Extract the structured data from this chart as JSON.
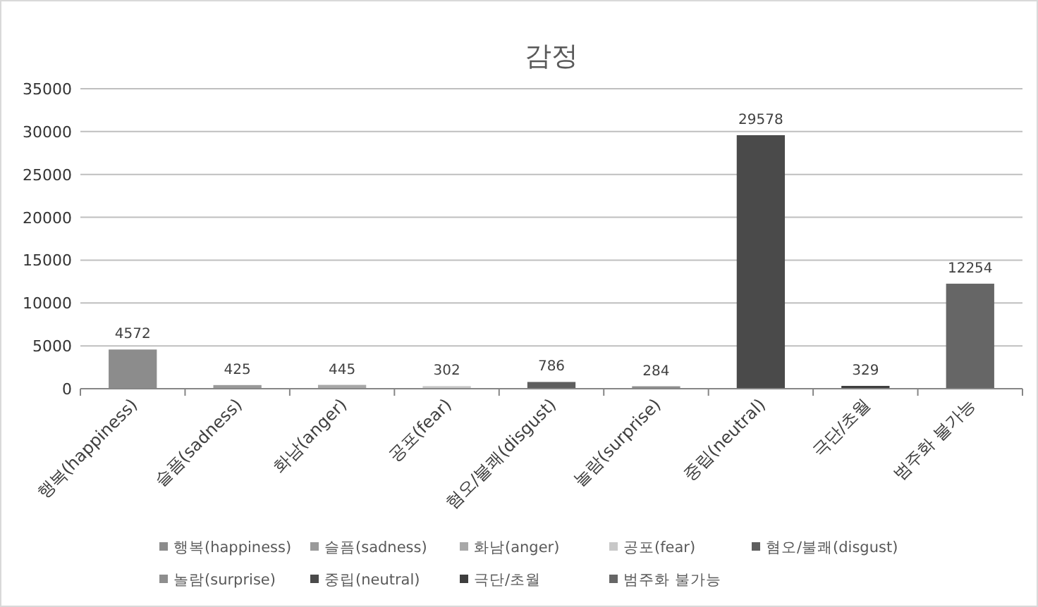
{
  "chart_data": {
    "type": "bar",
    "title": "감정",
    "categories": [
      "행복(happiness)",
      "슬픔(sadness)",
      "화남(anger)",
      "공포(fear)",
      "혐오/불쾌(disgust)",
      "놀람(surprise)",
      "중립(neutral)",
      "극단/초월",
      "범주화 불가능"
    ],
    "series": [
      {
        "name": "행복(happiness)",
        "color": "#8c8c8c",
        "values": [
          4572,
          null,
          null,
          null,
          null,
          null,
          null,
          null,
          null
        ]
      },
      {
        "name": "슬픔(sadness)",
        "color": "#9a9a9a",
        "values": [
          null,
          425,
          null,
          null,
          null,
          null,
          null,
          null,
          null
        ]
      },
      {
        "name": "화남(anger)",
        "color": "#a8a8a8",
        "values": [
          null,
          null,
          445,
          null,
          null,
          null,
          null,
          null,
          null
        ]
      },
      {
        "name": "공포(fear)",
        "color": "#c8c8c8",
        "values": [
          null,
          null,
          null,
          302,
          null,
          null,
          null,
          null,
          null
        ]
      },
      {
        "name": "혐오/불쾌(disgust)",
        "color": "#5e5e5e",
        "values": [
          null,
          null,
          null,
          null,
          786,
          null,
          null,
          null,
          null
        ]
      },
      {
        "name": "놀람(surprise)",
        "color": "#8e8e8e",
        "values": [
          null,
          null,
          null,
          null,
          null,
          284,
          null,
          null,
          null
        ]
      },
      {
        "name": "중립(neutral)",
        "color": "#4a4a4a",
        "values": [
          null,
          null,
          null,
          null,
          null,
          null,
          29578,
          null,
          null
        ]
      },
      {
        "name": "극단/초월",
        "color": "#3e3e3e",
        "values": [
          null,
          null,
          null,
          null,
          null,
          null,
          null,
          329,
          null
        ]
      },
      {
        "name": "범주화 불가능",
        "color": "#666666",
        "values": [
          null,
          null,
          null,
          null,
          null,
          null,
          null,
          null,
          12254
        ]
      }
    ],
    "ylim": [
      0,
      35000
    ],
    "yticks": [
      0,
      5000,
      10000,
      15000,
      20000,
      25000,
      30000,
      35000
    ],
    "grid": "y",
    "data_labels": true,
    "legend": "bottom"
  }
}
